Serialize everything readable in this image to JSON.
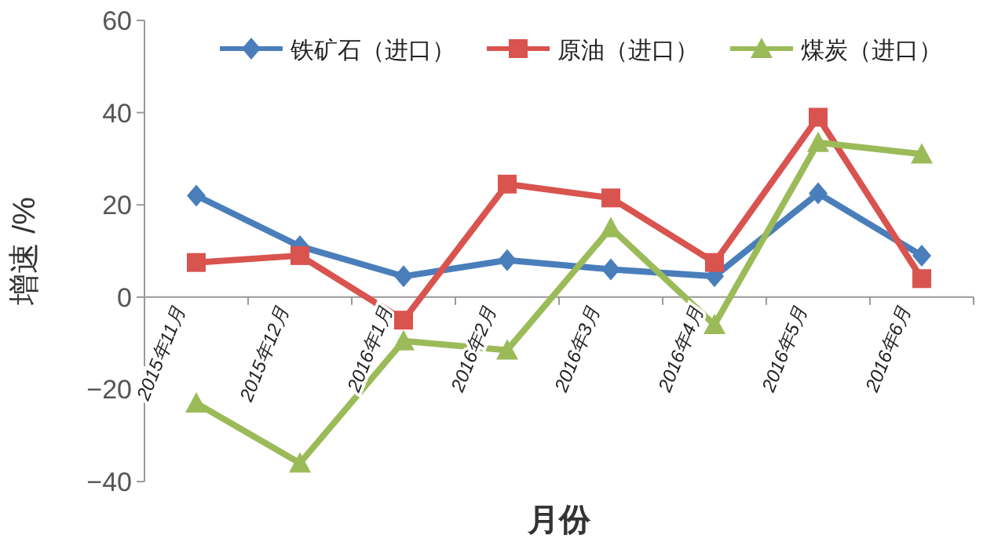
{
  "chart_data": {
    "type": "line",
    "xlabel": "月份",
    "ylabel": "增速 /%",
    "categories": [
      "2015年11月",
      "2015年12月",
      "2016年1月",
      "2016年2月",
      "2016年3月",
      "2016年4月",
      "2016年5月",
      "2016年6月"
    ],
    "series": [
      {
        "name": "铁矿石（进口）",
        "color": "#4a7ebb",
        "marker": "diamond",
        "values": [
          22,
          11,
          4.5,
          8,
          6,
          4.5,
          22.5,
          9
        ]
      },
      {
        "name": "原油（进口）",
        "color": "#d9534f",
        "marker": "square",
        "values": [
          7.5,
          9,
          -5,
          24.5,
          21.5,
          7.5,
          39,
          4
        ]
      },
      {
        "name": "煤炭（进口）",
        "color": "#9bbb59",
        "marker": "triangle",
        "values": [
          -23,
          -36,
          -9.5,
          -11.5,
          15,
          -6,
          33.5,
          31
        ]
      }
    ],
    "ylim": [
      -40,
      60
    ],
    "yticks": [
      -40,
      -20,
      0,
      20,
      40,
      60
    ],
    "grid": false,
    "legend": "top",
    "line_style": "solid"
  }
}
